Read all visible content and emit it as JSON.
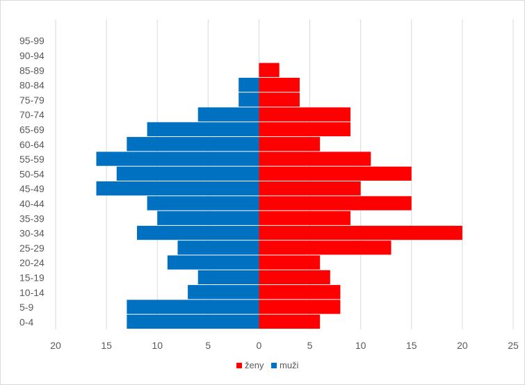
{
  "chart_data": {
    "type": "bar",
    "orientation": "horizontal",
    "categories": [
      "0-4",
      "5-9",
      "10-14",
      "15-19",
      "20-24",
      "25-29",
      "30-34",
      "35-39",
      "40-44",
      "45-49",
      "50-54",
      "55-59",
      "60-64",
      "65-69",
      "70-74",
      "75-79",
      "80-84",
      "85-89",
      "90-94",
      "95-99"
    ],
    "series": [
      {
        "name": "ženy",
        "color": "#ff0000",
        "values": [
          6,
          8,
          8,
          7,
          6,
          13,
          20,
          9,
          15,
          10,
          15,
          11,
          6,
          9,
          9,
          4,
          4,
          2,
          0,
          0
        ]
      },
      {
        "name": "muži",
        "color": "#0070c0",
        "values": [
          13,
          13,
          7,
          6,
          9,
          8,
          12,
          10,
          11,
          16,
          14,
          16,
          13,
          11,
          6,
          2,
          2,
          0,
          0,
          0
        ]
      }
    ],
    "xlim": [
      -20,
      25
    ],
    "x_ticks": [
      {
        "value": -20,
        "label": "20"
      },
      {
        "value": -15,
        "label": "15"
      },
      {
        "value": -10,
        "label": "10"
      },
      {
        "value": -5,
        "label": "5"
      },
      {
        "value": 0,
        "label": "0"
      },
      {
        "value": 5,
        "label": "5"
      },
      {
        "value": 10,
        "label": "10"
      },
      {
        "value": 15,
        "label": "15"
      },
      {
        "value": 20,
        "label": "20"
      },
      {
        "value": 25,
        "label": "25"
      }
    ],
    "grid": true,
    "legend_position": "bottom",
    "title": "",
    "xlabel": "",
    "ylabel": ""
  }
}
